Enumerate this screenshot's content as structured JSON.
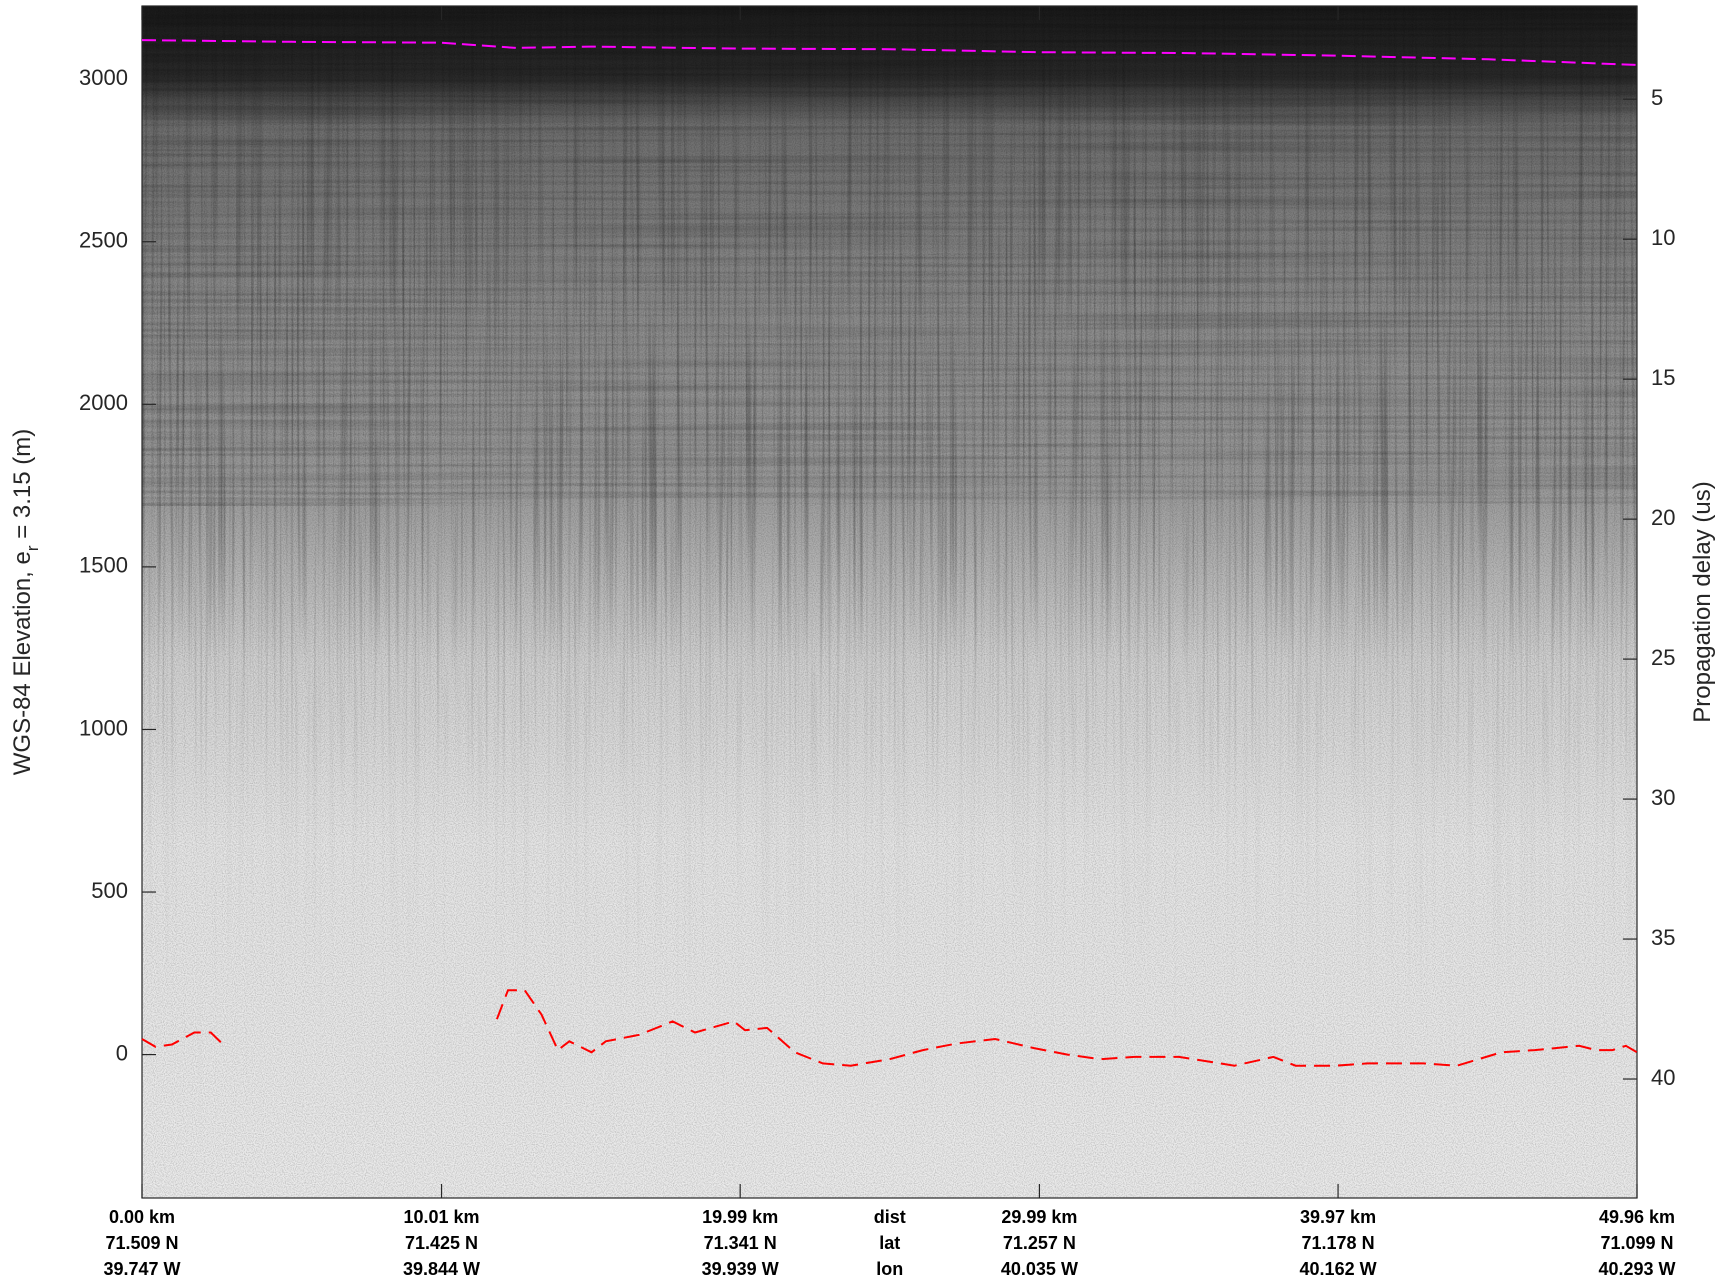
{
  "chart_data": {
    "type": "line",
    "xlim": [
      0,
      49.96
    ],
    "xticks": [
      {
        "value": 0,
        "label": "0.00 km"
      },
      {
        "value": 10.01,
        "label": "10.01 km"
      },
      {
        "value": 19.99,
        "label": "19.99 km"
      },
      {
        "value": 29.99,
        "label": "29.99 km"
      },
      {
        "value": 39.97,
        "label": "39.97 km"
      },
      {
        "value": 49.96,
        "label": "49.96 km"
      }
    ],
    "lat_labels": [
      "71.509 N",
      "71.425 N",
      "71.341 N",
      "71.257 N",
      "71.178 N",
      "71.099 N"
    ],
    "lon_labels": [
      "39.747 W",
      "39.844 W",
      "39.939 W",
      "40.035 W",
      "40.162 W",
      "40.293 W"
    ],
    "row_labels": [
      "dist",
      "lat",
      "lon"
    ],
    "ylim": [
      -441,
      3225
    ],
    "yticks": [
      0,
      500,
      1000,
      1500,
      2000,
      2500,
      3000
    ],
    "y2lim": [
      44.25,
      1.67
    ],
    "y2ticks": [
      5,
      10,
      15,
      20,
      25,
      30,
      35,
      40
    ],
    "ylabel": {
      "text": "WGS-84 Elevation, e",
      "sub": "r",
      "rest": " = 3.15 (m)"
    },
    "y2label": "Propagation delay (us)",
    "series": [
      {
        "color": "#ff00ff",
        "dash": "14 6",
        "x": [
          0,
          5,
          10,
          12.5,
          15,
          20,
          25,
          30,
          35,
          40,
          45,
          49.96
        ],
        "values": [
          3120,
          3115,
          3112,
          3096,
          3100,
          3094,
          3092,
          3083,
          3080,
          3072,
          3061,
          3044
        ]
      },
      {
        "color": "#ff0000",
        "dash": "16 8",
        "x": [
          0,
          0.45,
          1.0,
          1.75,
          2.3,
          2.79,
          7.0,
          11.86,
          12.23,
          12.79,
          13.35,
          13.9,
          14.28,
          15.02,
          15.5,
          16.62,
          17.73,
          18.48,
          19.78,
          20.15,
          20.89,
          21.82,
          22.75,
          23.68,
          24.98,
          26.1,
          27.21,
          28.51,
          29.81,
          30.93,
          32.04,
          33.16,
          34.65,
          36.51,
          37.81,
          38.55,
          39.85,
          40.97,
          42.83,
          43.94,
          45.43,
          46.54,
          48.03,
          48.59,
          49.14,
          49.59,
          49.96
        ],
        "values": [
          48,
          24,
          31,
          68,
          68,
          24,
          null,
          109,
          198,
          198,
          123,
          14,
          41,
          7,
          41,
          61,
          102,
          68,
          102,
          75,
          82,
          7,
          -27,
          -34,
          -14,
          14,
          34,
          48,
          20,
          0,
          -14,
          -7,
          -7,
          -34,
          -7,
          -34,
          -34,
          -27,
          -27,
          -34,
          7,
          14,
          27,
          14,
          14,
          27,
          7
        ]
      }
    ]
  }
}
